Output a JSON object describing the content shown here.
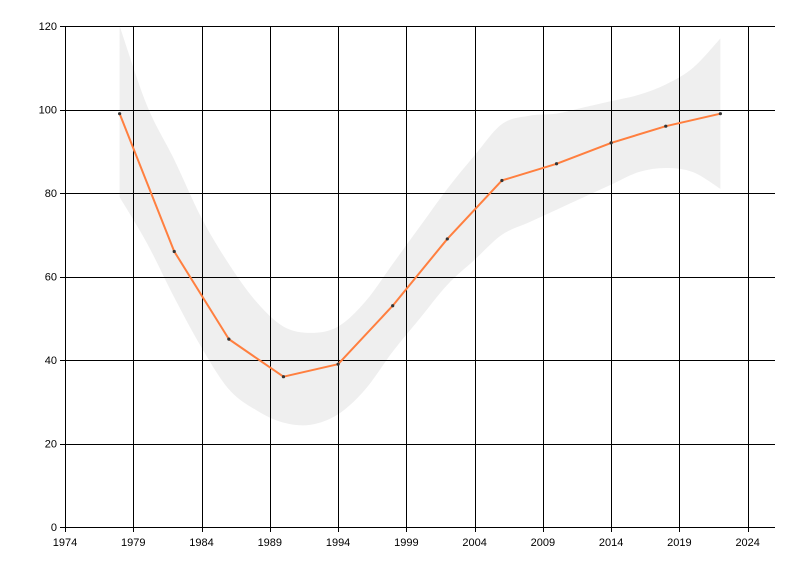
{
  "chart_data": {
    "type": "line",
    "title": "",
    "xlabel": "",
    "ylabel": "",
    "xlim": [
      1974,
      2026
    ],
    "ylim": [
      0,
      120
    ],
    "x_ticks": [
      "1974",
      "1979",
      "1984",
      "1989",
      "1994",
      "1999",
      "2004",
      "2009",
      "2014",
      "2019",
      "2024"
    ],
    "y_ticks": [
      "0",
      "20",
      "40",
      "60",
      "80",
      "100",
      "120"
    ],
    "grid": true,
    "legend": "none",
    "series": [
      {
        "color": "#ff7f3f",
        "x": [
          1978,
          1982,
          1986,
          1990,
          1994,
          1998,
          2002,
          2006,
          2010,
          2014,
          2018,
          2022
        ],
        "y": [
          99,
          66,
          45,
          36,
          39,
          53,
          69,
          83,
          87,
          92,
          96,
          99
        ]
      }
    ],
    "band": {
      "color": "#efefef",
      "x": [
        1978,
        1980,
        1982,
        1984,
        1986,
        1988,
        1990,
        1992,
        1994,
        1996,
        1998,
        2000,
        2002,
        2004,
        2006,
        2008,
        2010,
        2012,
        2014,
        2016,
        2018,
        2020,
        2022
      ],
      "upper": [
        120,
        101,
        88,
        74,
        63,
        54,
        48,
        46.5,
        48,
        54,
        63,
        72,
        81,
        89,
        96.5,
        98.5,
        99,
        100.5,
        102,
        103.5,
        106,
        110,
        117
      ],
      "lower": [
        79,
        68,
        55,
        43,
        33,
        28,
        25,
        24.5,
        27,
        33,
        42,
        50,
        58,
        64,
        70,
        73,
        76,
        79,
        82,
        85,
        86,
        85,
        81
      ]
    }
  }
}
